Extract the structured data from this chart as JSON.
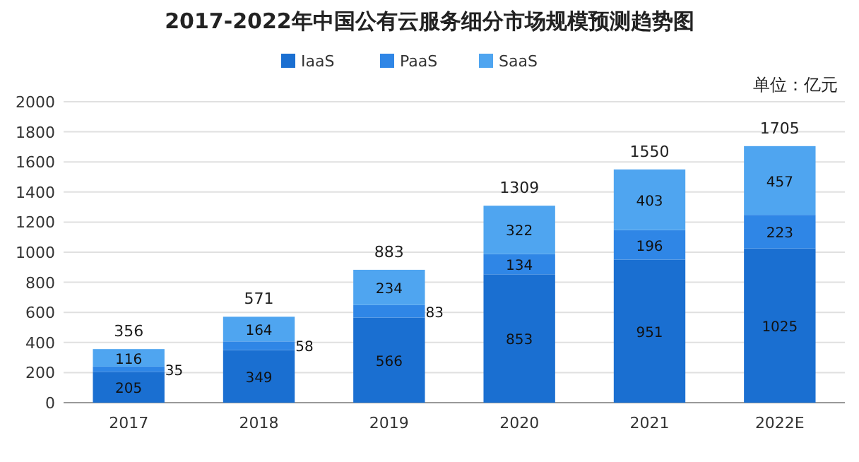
{
  "chart_data": {
    "type": "bar",
    "title": "2017-2022年中国公有云服务细分市场规模预测趋势图",
    "annotations": [
      "单位：亿元"
    ],
    "categories": [
      "2017",
      "2018",
      "2019",
      "2020",
      "2021",
      "2022E"
    ],
    "series": [
      {
        "name": "IaaS",
        "color": "#1a6fd1",
        "values": [
          205,
          349,
          566,
          853,
          951,
          1025
        ]
      },
      {
        "name": "PaaS",
        "color": "#2f86e6",
        "values": [
          35,
          58,
          83,
          134,
          196,
          223
        ]
      },
      {
        "name": "SaaS",
        "color": "#4fa5f0",
        "values": [
          116,
          164,
          234,
          322,
          403,
          457
        ]
      }
    ],
    "stacked": true,
    "data_labels": true,
    "totals": [
      "356",
      "571",
      "883",
      "1309",
      "1550",
      "1705"
    ],
    "ylim": [
      0,
      2000
    ],
    "yticks": [
      0,
      200,
      400,
      600,
      800,
      1000,
      1200,
      1400,
      1600,
      1800,
      2000
    ],
    "grid": "y",
    "legend": "top"
  }
}
